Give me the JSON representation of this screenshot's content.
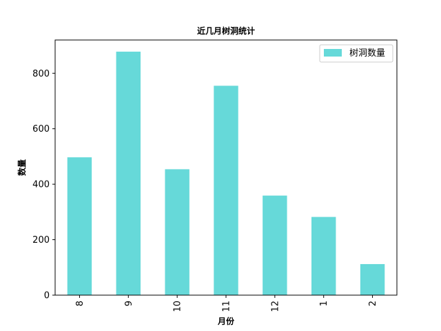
{
  "chart_data": {
    "type": "bar",
    "title": "近几月树洞统计",
    "xlabel": "月份",
    "ylabel": "数量",
    "categories": [
      "8",
      "9",
      "10",
      "11",
      "12",
      "1",
      "2"
    ],
    "series": [
      {
        "name": "树洞数量",
        "values": [
          497,
          878,
          454,
          755,
          359,
          282,
          112
        ],
        "color": "#66d9d9"
      }
    ],
    "ylim": [
      0,
      920
    ],
    "yticks": [
      0,
      200,
      400,
      600,
      800
    ],
    "legend_position": "top-right",
    "grid": false
  }
}
